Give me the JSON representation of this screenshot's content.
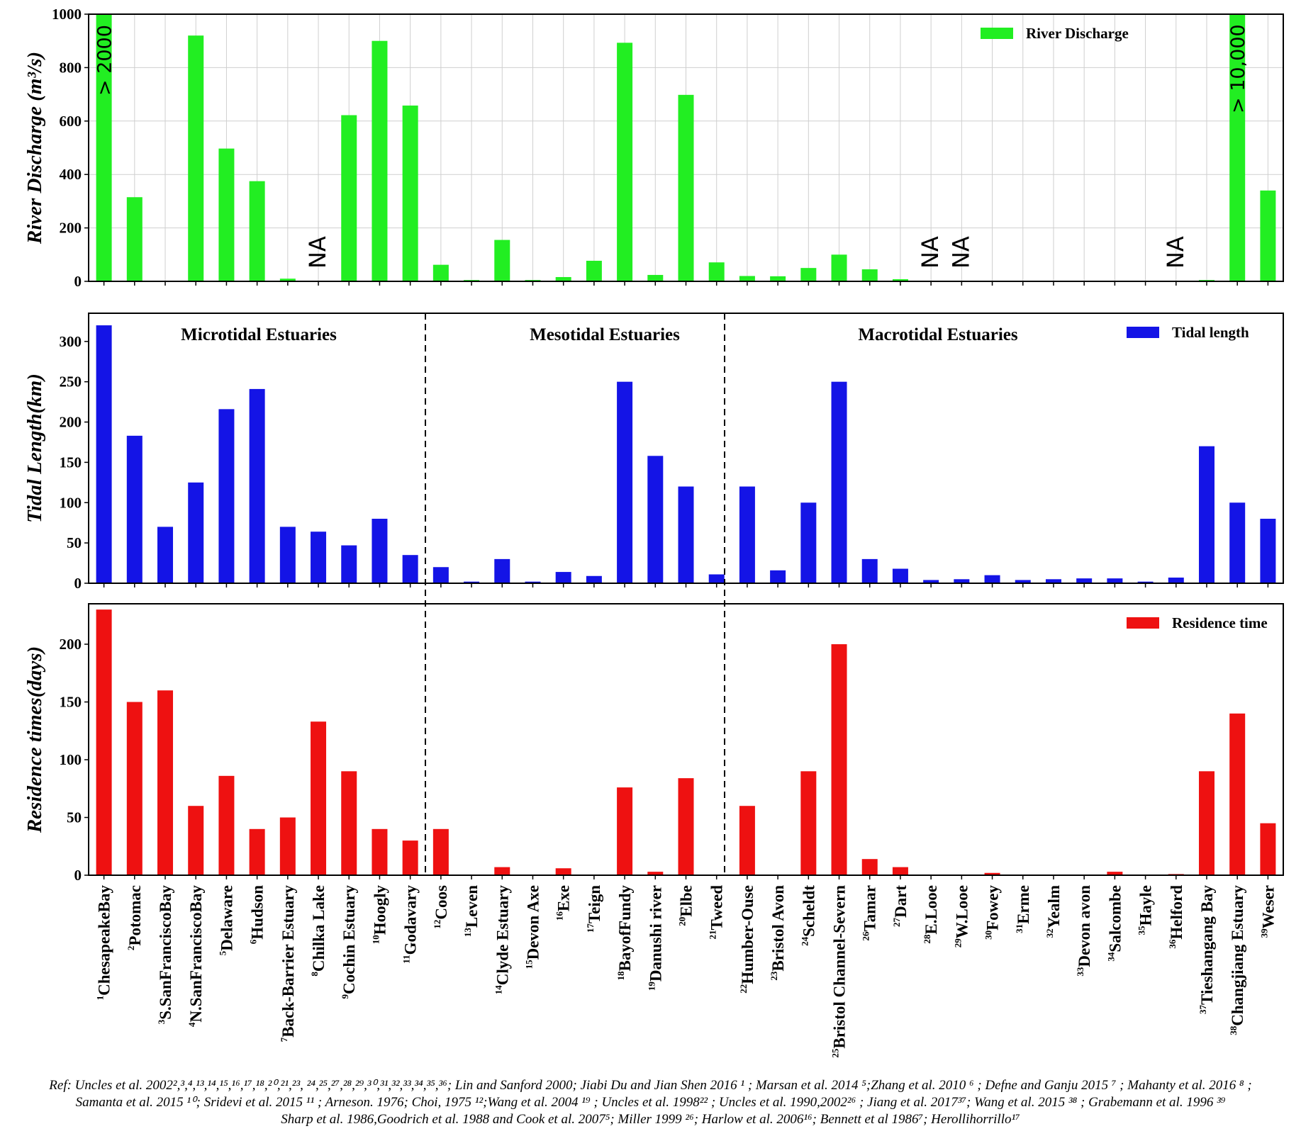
{
  "chart_data": [
    {
      "type": "bar",
      "panel": "discharge",
      "ylabel": "River Discharge (m³/s)",
      "ylim": [
        0,
        1000
      ],
      "yticks": [
        0,
        200,
        400,
        600,
        800,
        1000
      ],
      "legend": "River Discharge",
      "legend_position": "top-right",
      "color": "#22ee22",
      "grid": true,
      "values": [
        1000,
        315,
        0,
        920,
        497,
        375,
        10,
        null,
        622,
        900,
        658,
        62,
        5,
        155,
        5,
        16,
        77,
        893,
        24,
        698,
        71,
        20,
        19,
        50,
        100,
        45,
        8,
        null,
        null,
        0,
        0,
        0,
        0,
        0,
        0,
        null,
        5,
        1000,
        340
      ],
      "annotations": [
        {
          "index": 0,
          "text": "> 2000"
        },
        {
          "index": 7,
          "text": "NA"
        },
        {
          "index": 27,
          "text": "NA"
        },
        {
          "index": 28,
          "text": "NA"
        },
        {
          "index": 35,
          "text": "NA"
        },
        {
          "index": 37,
          "text": "> 10,000"
        }
      ]
    },
    {
      "type": "bar",
      "panel": "tidal",
      "ylabel": "Tidal Length(km)",
      "ylim": [
        0,
        335
      ],
      "yticks": [
        0,
        50,
        100,
        150,
        200,
        250,
        300
      ],
      "legend": "Tidal length",
      "legend_position": "top-right",
      "color": "#1414e6",
      "grid": false,
      "values": [
        320,
        183,
        70,
        125,
        216,
        241,
        70,
        64,
        47,
        80,
        35,
        20,
        2,
        30,
        2,
        14,
        9,
        250,
        158,
        120,
        11,
        120,
        16,
        100,
        250,
        30,
        18,
        4,
        5,
        10,
        4,
        5,
        6,
        6,
        2,
        7,
        170,
        100,
        80
      ],
      "groups": [
        "Microtidal Estuaries",
        "Mesotidal Estuaries",
        "Macrotidal Estuaries"
      ]
    },
    {
      "type": "bar",
      "panel": "residence",
      "ylabel": "Residence times(days)",
      "ylim": [
        0,
        235
      ],
      "yticks": [
        0,
        50,
        100,
        150,
        200
      ],
      "legend": "Residence time",
      "legend_position": "top-right",
      "color": "#ee1111",
      "grid": false,
      "values": [
        230,
        150,
        160,
        60,
        86,
        40,
        50,
        133,
        90,
        40,
        30,
        40,
        0,
        7,
        0,
        6,
        0,
        76,
        3,
        84,
        0,
        60,
        0,
        90,
        200,
        14,
        7,
        0,
        0,
        2,
        0,
        0,
        0,
        3,
        0,
        1,
        90,
        140,
        45
      ]
    }
  ],
  "categories": [
    {
      "sup": "1",
      "name": "ChesapeakeBay"
    },
    {
      "sup": "2",
      "name": "Potomac"
    },
    {
      "sup": "3",
      "name": "S.SanFranciscoBay"
    },
    {
      "sup": "4",
      "name": "N.SanFranciscoBay"
    },
    {
      "sup": "5",
      "name": "Delaware"
    },
    {
      "sup": "6",
      "name": "Hudson"
    },
    {
      "sup": "7",
      "name": "Back-Barrier Estuary"
    },
    {
      "sup": "8",
      "name": "Chilka Lake"
    },
    {
      "sup": "9",
      "name": "Cochin Estuary"
    },
    {
      "sup": "10",
      "name": "Hoogly"
    },
    {
      "sup": "11",
      "name": "Godavary"
    },
    {
      "sup": "12",
      "name": "Coos"
    },
    {
      "sup": "13",
      "name": "Leven"
    },
    {
      "sup": "14",
      "name": "Clyde Estuary"
    },
    {
      "sup": "15",
      "name": "Devon Axe"
    },
    {
      "sup": "16",
      "name": "Exe"
    },
    {
      "sup": "17",
      "name": "Teign"
    },
    {
      "sup": "18",
      "name": "BayofFundy"
    },
    {
      "sup": "19",
      "name": "Danushi river"
    },
    {
      "sup": "20",
      "name": "Elbe"
    },
    {
      "sup": "21",
      "name": "Tweed"
    },
    {
      "sup": "22",
      "name": "Humber-Ouse"
    },
    {
      "sup": "23",
      "name": "Bristol Avon"
    },
    {
      "sup": "24",
      "name": "Scheldt"
    },
    {
      "sup": "25",
      "name": "Bristol Channel-Severn"
    },
    {
      "sup": "26",
      "name": "Tamar"
    },
    {
      "sup": "27",
      "name": "Dart"
    },
    {
      "sup": "28",
      "name": "E.Looe"
    },
    {
      "sup": "29",
      "name": "W.Looe"
    },
    {
      "sup": "30",
      "name": "Fowey"
    },
    {
      "sup": "31",
      "name": "Erme"
    },
    {
      "sup": "32",
      "name": "Yealm"
    },
    {
      "sup": "33",
      "name": "Devon avon"
    },
    {
      "sup": "34",
      "name": "Salcombe"
    },
    {
      "sup": "35",
      "name": "Hayle"
    },
    {
      "sup": "36",
      "name": "Helford"
    },
    {
      "sup": "37",
      "name": "Tieshangang Bay"
    },
    {
      "sup": "38",
      "name": "Changjiang Estuary"
    },
    {
      "sup": "39",
      "name": "Weser"
    }
  ],
  "references": {
    "line1": "Ref: Uncles et al. 2002²,³,⁴,¹³,¹⁴,¹⁵,¹⁶,¹⁷,¹⁸,²⁰,²¹,²³, ²⁴,²⁵,²⁷,²⁸,²⁹,³⁰,³¹,³²,³³,³⁴,³⁵,³⁶; Lin and Sanford 2000; Jiabi Du and Jian Shen 2016 ¹ ; Marsan et al. 2014 ⁵;Zhang et al. 2010 ⁶ ; Defne and Ganju 2015 ⁷ ; Mahanty et al. 2016 ⁸ ;",
    "line2": "Samanta et al. 2015 ¹⁰; Sridevi et al. 2015 ¹¹ ; Arneson. 1976; Choi, 1975 ¹²;Wang et al. 2004 ¹⁹ ; Uncles et al. 1998²² ; Uncles et al. 1990,2002²⁶ ; Jiang et al. 2017³⁷; Wang et al. 2015 ³⁸ ; Grabemann et al. 1996 ³⁹",
    "line3": "Sharp et al. 1986,Goodrich et al. 1988 and Cook et al. 2007⁵; Miller 1999 ²⁶; Harlow et al. 2006¹⁶; Bennett et al 1986⁷; Herollihorrillo¹⁷"
  }
}
